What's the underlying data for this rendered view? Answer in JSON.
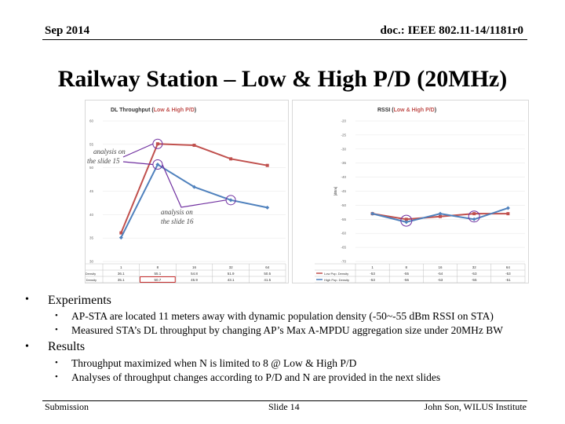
{
  "header": {
    "date": "Sep 2014",
    "doc": "doc.: IEEE 802.11-14/1181r0"
  },
  "title": "Railway Station – Low & High P/D (20MHz)",
  "colors": {
    "low": "#c0504d",
    "high": "#4f81bd",
    "annot": "#7030a0"
  },
  "chart_data": [
    {
      "type": "line",
      "title_prefix": "DL Throughput (",
      "title_highlight": "Low & High P/D",
      "title_suffix": ")",
      "ylabel": "[Mbps]",
      "ylim": [
        30,
        60
      ],
      "yticks": [
        "60",
        "55",
        "50",
        "45",
        "40",
        "35",
        "30"
      ],
      "categories": [
        "1",
        "8",
        "16",
        "32",
        "64"
      ],
      "series": [
        {
          "name": "Low Pop. Density",
          "values": [
            36.1,
            55.1,
            54.8,
            51.9,
            50.5
          ],
          "labels": [
            "36.1",
            "55.1",
            "54.8",
            "51.9",
            "50.5"
          ]
        },
        {
          "name": "High Pop. Density",
          "values": [
            35.1,
            50.7,
            45.9,
            43.1,
            41.5
          ],
          "labels": [
            "35.1",
            "50.7",
            "45.9",
            "43.1",
            "41.5"
          ]
        }
      ]
    },
    {
      "type": "line",
      "title_prefix": "RSSI (",
      "title_highlight": "Low & High P/D",
      "title_suffix": ")",
      "ylabel": "[dBm]",
      "ylim": [
        -70,
        -20
      ],
      "yticks": [
        "-20",
        "-25",
        "-30",
        "-35",
        "-40",
        "-45",
        "-50",
        "-55",
        "-60",
        "-65",
        "-70"
      ],
      "categories": [
        "1",
        "8",
        "16",
        "32",
        "64"
      ],
      "series": [
        {
          "name": "Low Pop. Density",
          "values": [
            -53,
            -55,
            -54,
            -53,
            -53
          ],
          "labels": [
            "-53",
            "-55",
            "-54",
            "-53",
            "-53"
          ]
        },
        {
          "name": "High Pop. Density",
          "values": [
            -53,
            -56,
            -53,
            -55,
            -51
          ],
          "labels": [
            "-53",
            "-56",
            "-53",
            "-55",
            "-51"
          ]
        }
      ]
    }
  ],
  "annotations": {
    "a1": "analysis on the slide 15",
    "a2": "analysis on the slide 16"
  },
  "bullets": {
    "experiments": "Experiments",
    "exp_items": [
      "AP-STA are located 11 meters away with dynamic population density (-50~-55 dBm RSSI on STA)",
      "Measured STA’s DL throughput by changing AP’s Max A-MPDU aggregation size under 20MHz BW"
    ],
    "results": "Results",
    "res_items": [
      "Throughput maximized when N is limited to 8 @ Low & High P/D",
      "Analyses of throughput changes according to P/D and N are provided in the next slides"
    ]
  },
  "footer": {
    "left": "Submission",
    "center": "Slide 14",
    "right": "John Son, WILUS Institute"
  }
}
